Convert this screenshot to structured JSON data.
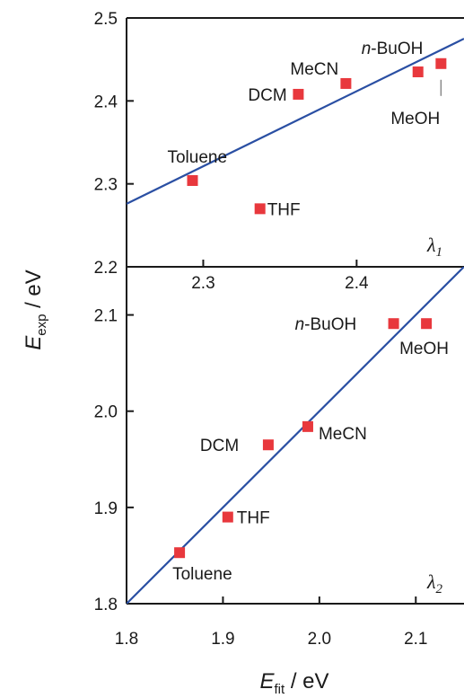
{
  "colors": {
    "marker": "#e8383d",
    "fit_line": "#2a4fa3",
    "axis": "#1a1a1a"
  },
  "ylabel": {
    "main": "E",
    "sub": "exp",
    "unit": " / eV"
  },
  "xlabel": {
    "main": "E",
    "sub": "fit",
    "unit": " / eV"
  },
  "chart_data": [
    {
      "type": "scatter",
      "panel": "λ1",
      "panel_tag": {
        "main": "λ",
        "sub": "1"
      },
      "xlim": [
        2.25,
        2.47
      ],
      "ylim": [
        2.2,
        2.5
      ],
      "x_ticks": [
        "2.3",
        "2.4"
      ],
      "x_tick_values": [
        2.3,
        2.4
      ],
      "y_ticks": [
        "2.2",
        "2.3",
        "2.4",
        "2.5"
      ],
      "y_tick_values": [
        2.2,
        2.3,
        2.4,
        2.5
      ],
      "x_tick_labels_inside_top": true,
      "points": [
        {
          "label": "Toluene",
          "x": 2.293,
          "y": 2.304
        },
        {
          "label": "THF",
          "x": 2.337,
          "y": 2.27
        },
        {
          "label": "DCM",
          "x": 2.362,
          "y": 2.408
        },
        {
          "label": "MeCN",
          "x": 2.393,
          "y": 2.421
        },
        {
          "label": "n-BuOH",
          "x": 2.44,
          "y": 2.435
        },
        {
          "label": "MeOH",
          "x": 2.455,
          "y": 2.445
        }
      ],
      "fit_line": [
        [
          2.25,
          2.276
        ],
        [
          2.47,
          2.475
        ]
      ]
    },
    {
      "type": "scatter",
      "panel": "λ2",
      "panel_tag": {
        "main": "λ",
        "sub": "2"
      },
      "xlim": [
        1.8,
        2.15
      ],
      "ylim": [
        1.8,
        2.15
      ],
      "x_ticks": [
        "1.8",
        "1.9",
        "2.0",
        "2.1"
      ],
      "x_tick_values": [
        1.8,
        1.9,
        2.0,
        2.1
      ],
      "y_ticks": [
        "1.8",
        "1.9",
        "2.0",
        "2.1"
      ],
      "y_tick_values": [
        1.8,
        1.9,
        2.0,
        2.1
      ],
      "points": [
        {
          "label": "Toluene",
          "x": 1.855,
          "y": 1.853
        },
        {
          "label": "THF",
          "x": 1.905,
          "y": 1.89
        },
        {
          "label": "DCM",
          "x": 1.947,
          "y": 1.965
        },
        {
          "label": "MeCN",
          "x": 1.988,
          "y": 1.984
        },
        {
          "label": "n-BuOH",
          "x": 2.077,
          "y": 2.091
        },
        {
          "label": "MeOH",
          "x": 2.111,
          "y": 2.091
        }
      ],
      "fit_line": [
        [
          1.8,
          1.8
        ],
        [
          2.15,
          2.15
        ]
      ]
    }
  ]
}
